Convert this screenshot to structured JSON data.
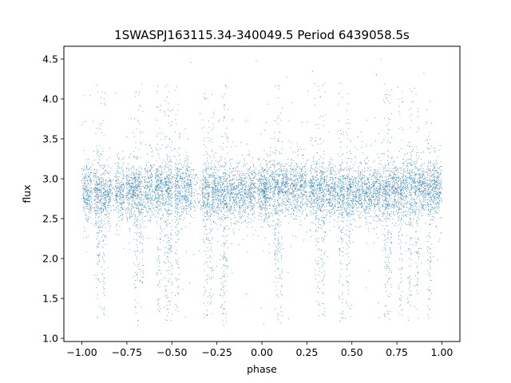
{
  "chart_data": {
    "type": "scatter",
    "title": "1SWASPJ163115.34-340049.5 Period 6439058.5s",
    "xlabel": "phase",
    "ylabel": "flux",
    "xlim": [
      -1.1,
      1.1
    ],
    "ylim": [
      0.96,
      4.66
    ],
    "xticks": [
      -1.0,
      -0.75,
      -0.5,
      -0.25,
      0.0,
      0.25,
      0.5,
      0.75,
      1.0
    ],
    "xtick_labels": [
      "−1.00",
      "−0.75",
      "−0.50",
      "−0.25",
      "0.00",
      "0.25",
      "0.50",
      "0.75",
      "1.00"
    ],
    "yticks": [
      1.0,
      1.5,
      2.0,
      2.5,
      3.0,
      3.5,
      4.0,
      4.5
    ],
    "ytick_labels": [
      "1.0",
      "1.5",
      "2.0",
      "2.5",
      "3.0",
      "3.5",
      "4.0",
      "4.5"
    ],
    "grid": false,
    "marker_color": "#1f77b4",
    "phase_range": [
      -1.0,
      1.0
    ],
    "baseline_flux": 2.85,
    "baseline_spread": 0.17,
    "dense_columns": [
      -0.97,
      -0.91,
      -0.86,
      -0.79,
      -0.73,
      -0.69,
      -0.63,
      -0.57,
      -0.52,
      -0.46,
      -0.41,
      -0.31,
      -0.26,
      -0.21,
      -0.16,
      -0.11,
      -0.06,
      0.0,
      0.03,
      0.08,
      0.13,
      0.18,
      0.23,
      0.29,
      0.34,
      0.39,
      0.44,
      0.49,
      0.54,
      0.59,
      0.64,
      0.69,
      0.74,
      0.79,
      0.84,
      0.89,
      0.94,
      0.98
    ],
    "dip_columns": [
      -0.91,
      -0.88,
      -0.7,
      -0.67,
      -0.57,
      -0.53,
      -0.51,
      -0.47,
      -0.31,
      -0.28,
      -0.22,
      -0.2,
      0.08,
      0.1,
      0.31,
      0.34,
      0.44,
      0.48,
      0.69,
      0.71,
      0.77,
      0.82,
      0.86,
      0.93
    ]
  }
}
